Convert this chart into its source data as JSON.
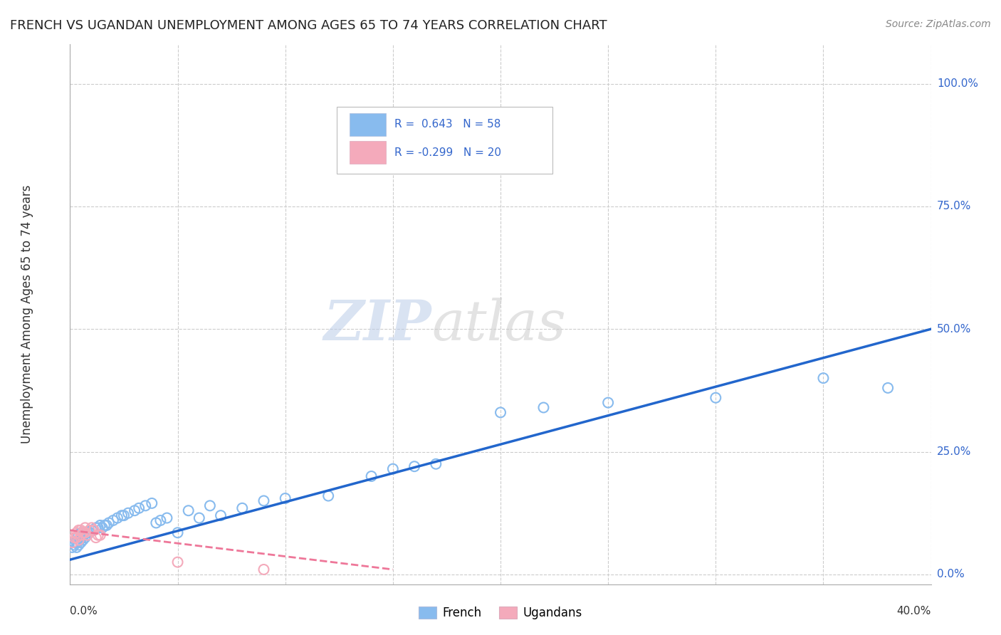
{
  "title": "FRENCH VS UGANDAN UNEMPLOYMENT AMONG AGES 65 TO 74 YEARS CORRELATION CHART",
  "source": "Source: ZipAtlas.com",
  "ylabel": "Unemployment Among Ages 65 to 74 years",
  "xlim": [
    0.0,
    0.4
  ],
  "ylim": [
    -0.02,
    1.08
  ],
  "ytick_labels": [
    "0.0%",
    "25.0%",
    "50.0%",
    "75.0%",
    "100.0%"
  ],
  "ytick_values": [
    0.0,
    0.25,
    0.5,
    0.75,
    1.0
  ],
  "xtick_labels": [
    "0.0%",
    "",
    "",
    "",
    "",
    "",
    "",
    "",
    "40.0%"
  ],
  "xtick_values": [
    0.0,
    0.05,
    0.1,
    0.15,
    0.2,
    0.25,
    0.3,
    0.35,
    0.4
  ],
  "french_R": 0.643,
  "french_N": 58,
  "ugandan_R": -0.299,
  "ugandan_N": 20,
  "french_color": "#88BBEE",
  "ugandan_color": "#F4AABB",
  "french_line_color": "#2266CC",
  "ugandan_line_color": "#EE7799",
  "french_scatter_x": [
    0.001,
    0.002,
    0.002,
    0.003,
    0.003,
    0.003,
    0.004,
    0.004,
    0.004,
    0.005,
    0.005,
    0.005,
    0.006,
    0.006,
    0.007,
    0.007,
    0.008,
    0.009,
    0.01,
    0.011,
    0.012,
    0.013,
    0.014,
    0.015,
    0.016,
    0.017,
    0.018,
    0.02,
    0.022,
    0.024,
    0.025,
    0.027,
    0.03,
    0.032,
    0.035,
    0.038,
    0.04,
    0.042,
    0.045,
    0.05,
    0.055,
    0.06,
    0.065,
    0.07,
    0.08,
    0.09,
    0.1,
    0.12,
    0.14,
    0.15,
    0.16,
    0.17,
    0.2,
    0.22,
    0.25,
    0.3,
    0.35,
    0.38
  ],
  "french_scatter_y": [
    0.055,
    0.06,
    0.065,
    0.055,
    0.065,
    0.075,
    0.06,
    0.07,
    0.08,
    0.065,
    0.075,
    0.085,
    0.07,
    0.08,
    0.075,
    0.085,
    0.08,
    0.085,
    0.09,
    0.09,
    0.095,
    0.095,
    0.1,
    0.095,
    0.1,
    0.1,
    0.105,
    0.11,
    0.115,
    0.12,
    0.12,
    0.125,
    0.13,
    0.135,
    0.14,
    0.145,
    0.105,
    0.11,
    0.115,
    0.085,
    0.13,
    0.115,
    0.14,
    0.12,
    0.135,
    0.15,
    0.155,
    0.16,
    0.2,
    0.215,
    0.22,
    0.225,
    0.33,
    0.34,
    0.35,
    0.36,
    0.4,
    0.38
  ],
  "ugandan_scatter_x": [
    0.001,
    0.002,
    0.003,
    0.003,
    0.004,
    0.004,
    0.005,
    0.005,
    0.006,
    0.007,
    0.007,
    0.008,
    0.009,
    0.01,
    0.011,
    0.012,
    0.013,
    0.014,
    0.05,
    0.09
  ],
  "ugandan_scatter_y": [
    0.065,
    0.075,
    0.075,
    0.085,
    0.07,
    0.09,
    0.08,
    0.09,
    0.085,
    0.085,
    0.095,
    0.08,
    0.09,
    0.095,
    0.09,
    0.075,
    0.08,
    0.08,
    0.025,
    0.01
  ],
  "french_line_x": [
    0.0,
    0.4
  ],
  "french_line_y": [
    0.03,
    0.5
  ],
  "ugandan_line_x": [
    0.0,
    0.15
  ],
  "ugandan_line_y": [
    0.09,
    0.01
  ],
  "background_color": "#FFFFFF",
  "grid_color": "#CCCCCC"
}
